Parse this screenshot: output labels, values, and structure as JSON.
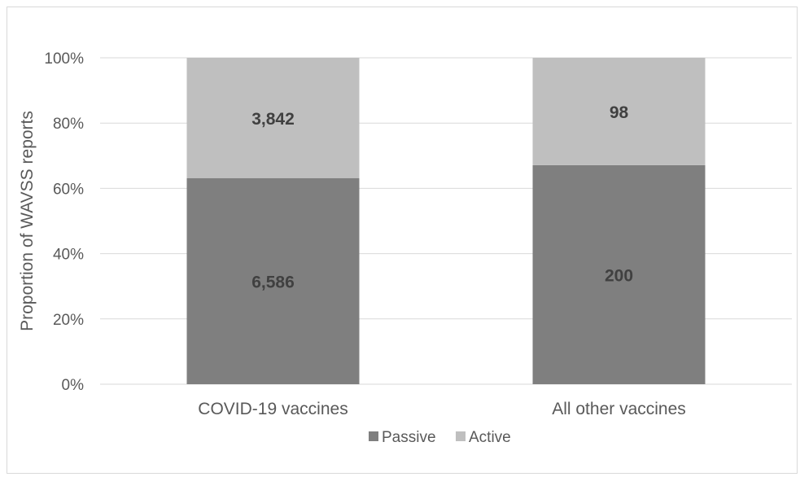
{
  "chart_data": {
    "type": "bar",
    "stacked": true,
    "normalized": true,
    "categories": [
      "COVID-19 vaccines",
      "All other vaccines"
    ],
    "series": [
      {
        "name": "Passive",
        "values": [
          6586,
          200
        ],
        "display": [
          "6,586",
          "200"
        ],
        "color": "#7f7f7f"
      },
      {
        "name": "Active",
        "values": [
          3842,
          98
        ],
        "display": [
          "3,842",
          "98"
        ],
        "color": "#bfbfbf"
      }
    ],
    "title": "",
    "xlabel": "",
    "ylabel": "Proportion of WAVSS reports",
    "ylim": [
      0,
      100
    ],
    "yticks": [
      "0%",
      "20%",
      "40%",
      "60%",
      "80%",
      "100%"
    ],
    "grid": true,
    "legend_position": "bottom"
  }
}
